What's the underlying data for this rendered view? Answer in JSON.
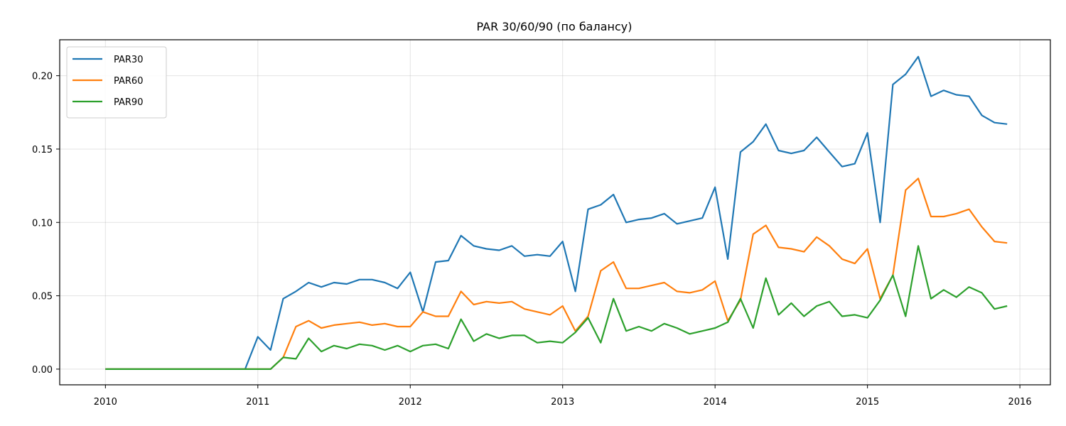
{
  "chart_data": {
    "type": "line",
    "title": "PAR 30/60/90 (по балансу)",
    "xlabel": "",
    "ylabel": "",
    "xlim": [
      2009.7,
      2016.2
    ],
    "ylim": [
      -0.0107,
      0.2245
    ],
    "grid": true,
    "legend_position": "top-left",
    "x_ticks": [
      2010,
      2011,
      2012,
      2013,
      2014,
      2015,
      2016
    ],
    "x_tick_labels": [
      "2010",
      "2011",
      "2012",
      "2013",
      "2014",
      "2015",
      "2016"
    ],
    "y_ticks": [
      0.0,
      0.05,
      0.1,
      0.15,
      0.2
    ],
    "y_tick_labels": [
      "0.00",
      "0.05",
      "0.10",
      "0.15",
      "0.20"
    ],
    "x": [
      "2010-01",
      "2010-02",
      "2010-03",
      "2010-04",
      "2010-05",
      "2010-06",
      "2010-07",
      "2010-08",
      "2010-09",
      "2010-10",
      "2010-11",
      "2010-12",
      "2011-01",
      "2011-02",
      "2011-03",
      "2011-04",
      "2011-05",
      "2011-06",
      "2011-07",
      "2011-08",
      "2011-09",
      "2011-10",
      "2011-11",
      "2011-12",
      "2012-01",
      "2012-02",
      "2012-03",
      "2012-04",
      "2012-05",
      "2012-06",
      "2012-07",
      "2012-08",
      "2012-09",
      "2012-10",
      "2012-11",
      "2012-12",
      "2013-01",
      "2013-02",
      "2013-03",
      "2013-04",
      "2013-05",
      "2013-06",
      "2013-07",
      "2013-08",
      "2013-09",
      "2013-10",
      "2013-11",
      "2013-12",
      "2014-01",
      "2014-02",
      "2014-03",
      "2014-04",
      "2014-05",
      "2014-06",
      "2014-07",
      "2014-08",
      "2014-09",
      "2014-10",
      "2014-11",
      "2014-12",
      "2015-01",
      "2015-02",
      "2015-03",
      "2015-04",
      "2015-05",
      "2015-06",
      "2015-07",
      "2015-08",
      "2015-09",
      "2015-10",
      "2015-11",
      "2015-12"
    ],
    "series": [
      {
        "name": "PAR30",
        "color": "#1f77b4",
        "values": [
          0,
          0,
          0,
          0,
          0,
          0,
          0,
          0,
          0,
          0,
          0,
          0,
          0.022,
          0.013,
          0.048,
          0.053,
          0.059,
          0.056,
          0.059,
          0.058,
          0.061,
          0.061,
          0.059,
          0.055,
          0.066,
          0.039,
          0.073,
          0.074,
          0.091,
          0.084,
          0.082,
          0.081,
          0.084,
          0.077,
          0.078,
          0.077,
          0.087,
          0.053,
          0.109,
          0.112,
          0.119,
          0.1,
          0.102,
          0.103,
          0.106,
          0.099,
          0.101,
          0.103,
          0.124,
          0.075,
          0.148,
          0.155,
          0.167,
          0.149,
          0.147,
          0.149,
          0.158,
          0.148,
          0.138,
          0.14,
          0.161,
          0.1,
          0.194,
          0.201,
          0.213,
          0.186,
          0.19,
          0.187,
          0.186,
          0.173,
          0.168,
          0.167
        ]
      },
      {
        "name": "PAR60",
        "color": "#ff7f0e",
        "values": [
          0,
          0,
          0,
          0,
          0,
          0,
          0,
          0,
          0,
          0,
          0,
          0,
          0,
          0,
          0.008,
          0.029,
          0.033,
          0.028,
          0.03,
          0.031,
          0.032,
          0.03,
          0.031,
          0.029,
          0.029,
          0.039,
          0.036,
          0.036,
          0.053,
          0.044,
          0.046,
          0.045,
          0.046,
          0.041,
          0.039,
          0.037,
          0.043,
          0.026,
          0.036,
          0.067,
          0.073,
          0.055,
          0.055,
          0.057,
          0.059,
          0.053,
          0.052,
          0.054,
          0.06,
          0.033,
          0.047,
          0.092,
          0.098,
          0.083,
          0.082,
          0.08,
          0.09,
          0.084,
          0.075,
          0.072,
          0.082,
          0.048,
          0.064,
          0.122,
          0.13,
          0.104,
          0.104,
          0.106,
          0.109,
          0.097,
          0.087,
          0.086
        ]
      },
      {
        "name": "PAR90",
        "color": "#2ca02c",
        "values": [
          0,
          0,
          0,
          0,
          0,
          0,
          0,
          0,
          0,
          0,
          0,
          0,
          0,
          0,
          0.008,
          0.007,
          0.021,
          0.012,
          0.016,
          0.014,
          0.017,
          0.016,
          0.013,
          0.016,
          0.012,
          0.016,
          0.017,
          0.014,
          0.034,
          0.019,
          0.024,
          0.021,
          0.023,
          0.023,
          0.018,
          0.019,
          0.018,
          0.025,
          0.035,
          0.018,
          0.048,
          0.026,
          0.029,
          0.026,
          0.031,
          0.028,
          0.024,
          0.026,
          0.028,
          0.032,
          0.048,
          0.028,
          0.062,
          0.037,
          0.045,
          0.036,
          0.043,
          0.046,
          0.036,
          0.037,
          0.035,
          0.047,
          0.064,
          0.036,
          0.084,
          0.048,
          0.054,
          0.049,
          0.056,
          0.052,
          0.041,
          0.043
        ]
      }
    ]
  }
}
